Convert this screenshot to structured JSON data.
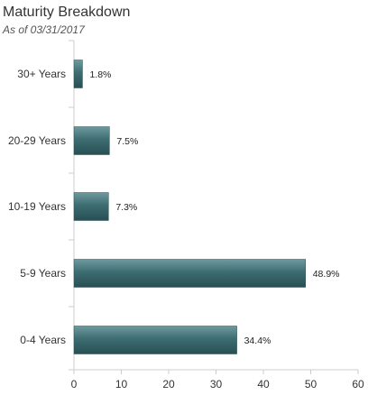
{
  "header": {
    "title": "Maturity Breakdown",
    "subtitle": "As of 03/31/2017"
  },
  "colors": {
    "bar_top": "#6e9a9e",
    "bar_mid": "#3d6d72",
    "bar_bottom": "#284f53",
    "axis": "#cccccc"
  },
  "chart_data": {
    "type": "bar",
    "orientation": "horizontal",
    "title": "Maturity Breakdown",
    "subtitle": "As of 03/31/2017",
    "categories": [
      "30+ Years",
      "20-29 Years",
      "10-19 Years",
      "5-9 Years",
      "0-4 Years"
    ],
    "values": [
      1.8,
      7.5,
      7.3,
      48.9,
      34.4
    ],
    "data_labels": [
      "1.8%",
      "7.5%",
      "7.3%",
      "48.9%",
      "34.4%"
    ],
    "xlim": [
      0,
      60
    ],
    "xticks": [
      0,
      10,
      20,
      30,
      40,
      50,
      60
    ],
    "xtick_labels": [
      "0",
      "10",
      "20",
      "30",
      "40",
      "50",
      "60"
    ],
    "grid": false,
    "legend": "none"
  }
}
